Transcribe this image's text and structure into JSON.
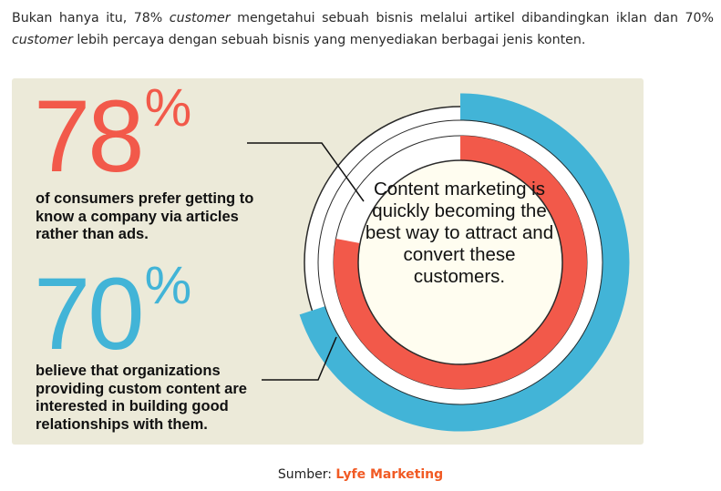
{
  "intro": {
    "part1": "Bukan hanya itu, 78% ",
    "em1": "customer",
    "part2": " mengetahui sebuah bisnis melalui artikel dibandingkan iklan dan 70% ",
    "em2": "customer",
    "part3": " lebih percaya dengan sebuah bisnis yang menyediakan berbagai jenis konten."
  },
  "infographic": {
    "stat1": {
      "number": "78",
      "percent": "%",
      "caption": "of consumers prefer getting to know a company via articles rather than ads.",
      "value": 78,
      "color": "#f2594a"
    },
    "stat2": {
      "number": "70",
      "percent": "%",
      "caption": "believe that organizations providing custom content are interested in building good relationships with them.",
      "value": 70,
      "color": "#42b4d7"
    },
    "center_text": "Content marketing is quickly becoming the best way to attract and convert these customers.",
    "background": "#ecead9"
  },
  "source": {
    "label": "Sumber:",
    "brand": "Lyfe Marketing"
  }
}
